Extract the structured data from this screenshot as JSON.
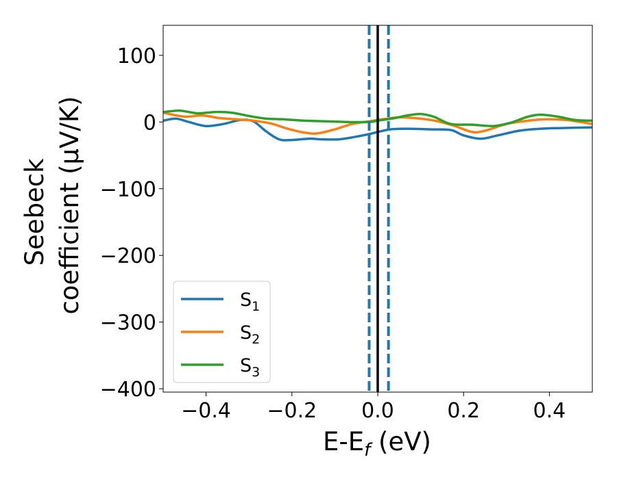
{
  "chart_data": {
    "type": "line",
    "xlabel_main": "E-E",
    "xlabel_sub": "f",
    "xlabel_unit": " (eV)",
    "ylabel_line1": "Seebeck",
    "ylabel_line2": "coefficient  (μV/K)",
    "xlim": [
      -0.5,
      0.5
    ],
    "ylim": [
      -405,
      145
    ],
    "xticks": [
      -0.4,
      -0.2,
      0.0,
      0.2,
      0.4
    ],
    "xtick_labels": [
      "−0.4",
      "−0.2",
      "0.0",
      "0.2",
      "0.4"
    ],
    "yticks": [
      100,
      0,
      -100,
      -200,
      -300,
      -400
    ],
    "ytick_labels": [
      "100",
      "0",
      "−100",
      "−200",
      "−300",
      "−400"
    ],
    "vlines": [
      {
        "x": 0.0,
        "style": "solid",
        "color": "#000000"
      },
      {
        "x": -0.02,
        "style": "dashed",
        "color": "#1f77b4"
      },
      {
        "x": 0.025,
        "style": "dashed",
        "color": "#1f77b4"
      }
    ],
    "legend_position": "lower-left",
    "series": [
      {
        "name": "S",
        "sub": "1",
        "color": "#1f77b4",
        "x": [
          -0.5,
          -0.47,
          -0.44,
          -0.4,
          -0.36,
          -0.32,
          -0.29,
          -0.26,
          -0.23,
          -0.2,
          -0.16,
          -0.13,
          -0.09,
          -0.05,
          -0.02,
          0.0,
          0.03,
          0.07,
          0.12,
          0.17,
          0.2,
          0.24,
          0.28,
          0.33,
          0.38,
          0.43,
          0.5
        ],
        "values": [
          2,
          5,
          0,
          -6,
          -3,
          3,
          1,
          -14,
          -26,
          -27,
          -25,
          -26,
          -26,
          -22,
          -18,
          -15,
          -11,
          -10,
          -11,
          -12,
          -20,
          -25,
          -20,
          -13,
          -10,
          -9,
          -8
        ]
      },
      {
        "name": "S",
        "sub": "2",
        "color": "#ff7f0e",
        "x": [
          -0.5,
          -0.45,
          -0.41,
          -0.37,
          -0.33,
          -0.29,
          -0.25,
          -0.21,
          -0.17,
          -0.14,
          -0.1,
          -0.06,
          -0.02,
          0.0,
          0.05,
          0.1,
          0.14,
          0.18,
          0.22,
          0.25,
          0.3,
          0.35,
          0.39,
          0.44,
          0.5
        ],
        "values": [
          14,
          8,
          10,
          6,
          4,
          2,
          -2,
          -10,
          -16,
          -17,
          -11,
          -3,
          1,
          3,
          7,
          5,
          1,
          -6,
          -15,
          -13,
          -3,
          2,
          4,
          3,
          -3
        ]
      },
      {
        "name": "S",
        "sub": "3",
        "color": "#2ca02c",
        "x": [
          -0.5,
          -0.46,
          -0.42,
          -0.38,
          -0.34,
          -0.3,
          -0.26,
          -0.22,
          -0.17,
          -0.12,
          -0.07,
          -0.02,
          0.0,
          0.04,
          0.07,
          0.1,
          0.13,
          0.17,
          0.22,
          0.27,
          0.31,
          0.35,
          0.38,
          0.42,
          0.46,
          0.5
        ],
        "values": [
          15,
          17,
          13,
          15,
          14,
          9,
          5,
          4,
          2,
          1,
          0,
          0,
          2,
          6,
          10,
          12,
          8,
          -3,
          -4,
          -6,
          -1,
          8,
          11,
          8,
          3,
          2
        ]
      }
    ]
  }
}
